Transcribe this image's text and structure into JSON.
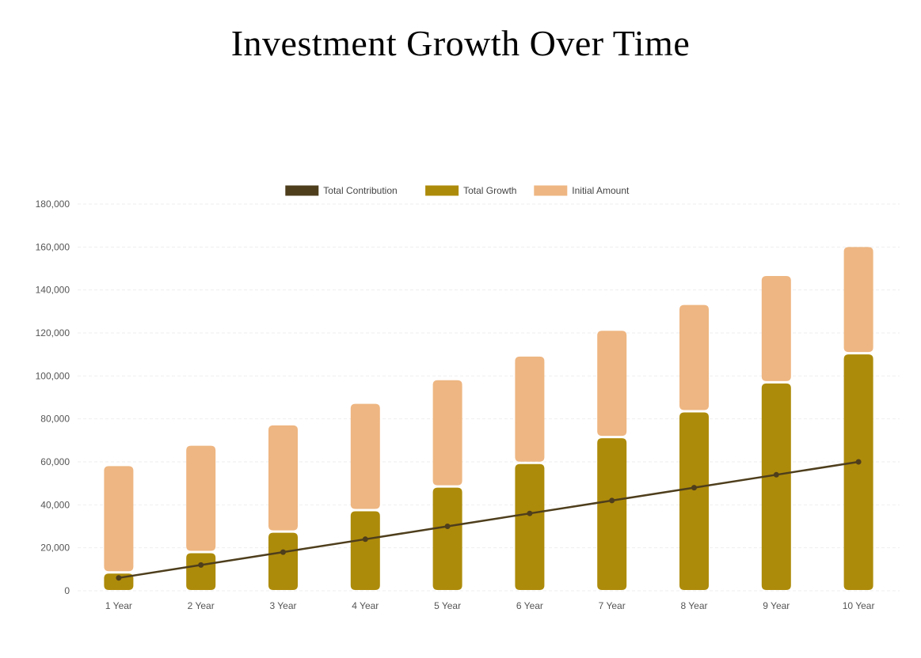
{
  "title": "Investment Growth Over Time",
  "colors": {
    "total_contribution": "#4e3e1c",
    "total_growth": "#ad8b0a",
    "initial_amount": "#eeb682",
    "grid": "#eeeeee",
    "tick_text": "#555555",
    "legend_text": "#444444"
  },
  "chart_data": {
    "type": "bar",
    "stacked": true,
    "categories": [
      "1 Year",
      "2 Year",
      "3 Year",
      "4 Year",
      "5 Year",
      "6 Year",
      "7 Year",
      "8 Year",
      "9 Year",
      "10 Year"
    ],
    "series": [
      {
        "name": "Total Contribution",
        "type": "line",
        "values": [
          6000,
          12000,
          18000,
          24000,
          30000,
          36000,
          42000,
          48000,
          54000,
          60000
        ]
      },
      {
        "name": "Total Growth",
        "type": "bar",
        "values": [
          8000,
          17500,
          27000,
          37000,
          48000,
          59000,
          71000,
          83000,
          96500,
          110000
        ]
      },
      {
        "name": "Initial Amount",
        "type": "bar",
        "values": [
          50000,
          50000,
          50000,
          50000,
          50000,
          50000,
          50000,
          50000,
          50000,
          50000
        ]
      }
    ],
    "ylim": [
      0,
      180000
    ],
    "yticks": [
      "0",
      "20,000",
      "40,000",
      "60,000",
      "80,000",
      "100,000",
      "120,000",
      "140,000",
      "160,000",
      "180,000"
    ],
    "legend_position": "top",
    "grid": true
  }
}
